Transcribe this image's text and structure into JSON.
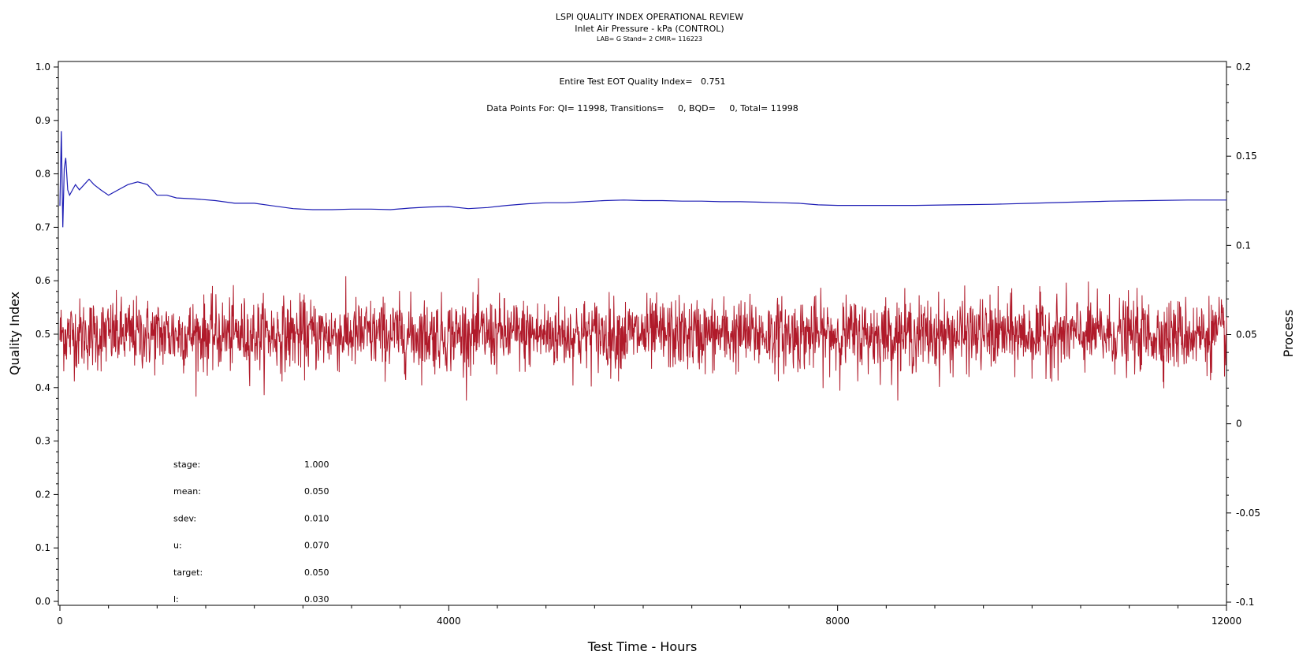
{
  "chart_data": {
    "type": "line",
    "title": "LSPI QUALITY INDEX OPERATIONAL REVIEW",
    "subtitle": "Inlet Air Pressure - kPa (CONTROL)",
    "sub_subtitle": "LAB= G Stand= 2 CMIR= 116223",
    "annotation_quality": "Entire Test EOT Quality Index=   0.751",
    "annotation_points": "Data Points For: QI= 11998, Transitions=     0, BQD=     0, Total= 11998",
    "xlabel": "Test Time - Hours",
    "ylabel_left": "Quality Index",
    "ylabel_right": "Process",
    "xlim": [
      0,
      12000
    ],
    "ylim_left": [
      0.0,
      1.0
    ],
    "ylim_right": [
      -0.1,
      0.2
    ],
    "x_ticks": [
      0,
      4000,
      8000,
      12000
    ],
    "x_tick_labels": [
      "0",
      "4000",
      "8000",
      "12000"
    ],
    "y_left_ticks": [
      0.0,
      0.1,
      0.2,
      0.3,
      0.4,
      0.5,
      0.6,
      0.7,
      0.8,
      0.9,
      1.0
    ],
    "y_left_tick_labels": [
      "0.0",
      "0.1",
      "0.2",
      "0.3",
      "0.4",
      "0.5",
      "0.6",
      "0.7",
      "0.8",
      "0.9",
      "1.0"
    ],
    "y_right_ticks": [
      -0.1,
      -0.05,
      0,
      0.05,
      0.1,
      0.15,
      0.2
    ],
    "y_right_tick_labels": [
      "-0.1",
      "-0.05",
      "0",
      "0.05",
      "0.1",
      "0.15",
      "0.2"
    ],
    "series": [
      {
        "axis": "left",
        "color": "#1c1cb4",
        "x": [
          0,
          15,
          30,
          45,
          60,
          80,
          100,
          130,
          160,
          200,
          250,
          300,
          350,
          420,
          500,
          600,
          700,
          800,
          900,
          1000,
          1100,
          1200,
          1400,
          1600,
          1800,
          2000,
          2200,
          2400,
          2600,
          2800,
          3000,
          3200,
          3400,
          3600,
          3800,
          4000,
          4200,
          4400,
          4600,
          4800,
          5000,
          5200,
          5400,
          5600,
          5800,
          6000,
          6200,
          6400,
          6600,
          6800,
          7000,
          7200,
          7400,
          7600,
          7800,
          8000,
          8400,
          8800,
          9200,
          9600,
          10000,
          10400,
          10800,
          11200,
          11600,
          12000
        ],
        "y": [
          0.74,
          0.88,
          0.7,
          0.81,
          0.83,
          0.77,
          0.76,
          0.77,
          0.78,
          0.77,
          0.78,
          0.79,
          0.78,
          0.77,
          0.76,
          0.77,
          0.78,
          0.785,
          0.78,
          0.76,
          0.76,
          0.755,
          0.753,
          0.75,
          0.745,
          0.745,
          0.74,
          0.735,
          0.733,
          0.733,
          0.734,
          0.734,
          0.733,
          0.736,
          0.738,
          0.739,
          0.735,
          0.737,
          0.741,
          0.744,
          0.746,
          0.746,
          0.748,
          0.75,
          0.751,
          0.75,
          0.75,
          0.749,
          0.749,
          0.748,
          0.748,
          0.747,
          0.746,
          0.745,
          0.742,
          0.741,
          0.741,
          0.741,
          0.742,
          0.743,
          0.745,
          0.747,
          0.749,
          0.75,
          0.751,
          0.751
        ]
      },
      {
        "axis": "right",
        "color": "#b01a2a",
        "sample_count": 11998,
        "mean": 0.05,
        "sdev": 0.01,
        "max": 0.091,
        "min": 0.013
      }
    ]
  },
  "stats": [
    {
      "label": "stage:",
      "value": "1.000"
    },
    {
      "label": "mean:",
      "value": "0.050"
    },
    {
      "label": "sdev:",
      "value": "0.010"
    },
    {
      "label": "u:",
      "value": "0.070"
    },
    {
      "label": "target:",
      "value": "0.050"
    },
    {
      "label": "l:",
      "value": "0.030"
    }
  ]
}
